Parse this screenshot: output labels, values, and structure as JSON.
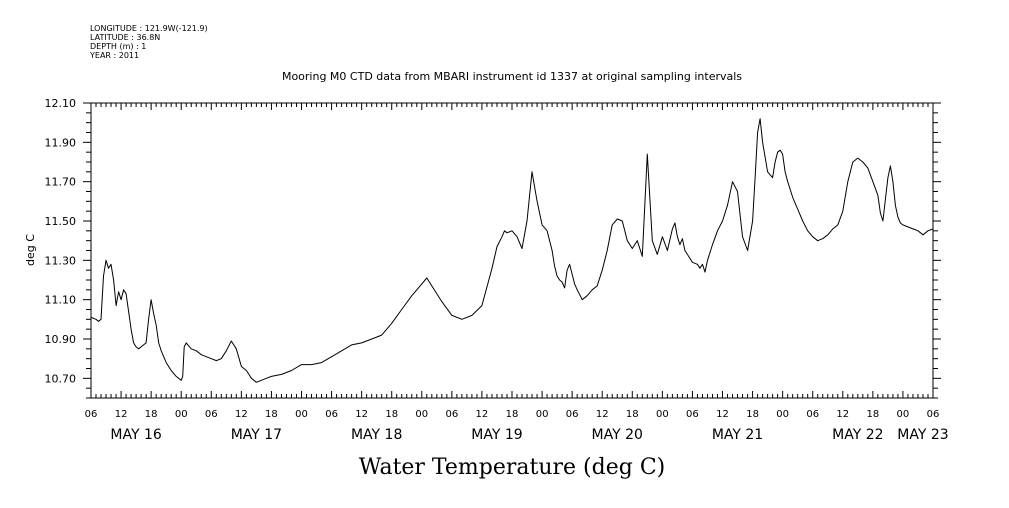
{
  "meta": {
    "longitude": "LONGITUDE : 121.9W(-121.9)",
    "latitude": "LATITUDE : 36.8N",
    "depth": "DEPTH (m) : 1",
    "year": "YEAR : 2011"
  },
  "title": "Mooring M0 CTD data from MBARI instrument id 1337 at original sampling intervals",
  "bottom_title": "Water Temperature (deg C)",
  "chart_data": {
    "type": "line",
    "title": "Mooring M0 CTD data from MBARI instrument id 1337 at original sampling intervals",
    "xlabel": "Water Temperature (deg C)",
    "ylabel": "deg C",
    "ylim": [
      10.6,
      12.1
    ],
    "xlim": [
      6,
      174
    ],
    "y_ticks": [
      10.7,
      10.9,
      11.1,
      11.3,
      11.5,
      11.7,
      11.9,
      12.1
    ],
    "y_tick_labels": [
      "10.70",
      "10.90",
      "11.10",
      "11.30",
      "11.50",
      "11.70",
      "11.90",
      "12.10"
    ],
    "x_hour_labels": [
      "06",
      "12",
      "18",
      "00",
      "06",
      "12",
      "18",
      "00",
      "06",
      "12",
      "18",
      "00",
      "06",
      "12",
      "18",
      "00",
      "06",
      "12",
      "18",
      "00",
      "06",
      "12",
      "18",
      "00",
      "06",
      "12",
      "18",
      "00",
      "06"
    ],
    "x_day_labels": [
      {
        "label": "MAY 16",
        "hour": 15
      },
      {
        "label": "MAY 17",
        "hour": 39
      },
      {
        "label": "MAY 18",
        "hour": 63
      },
      {
        "label": "MAY 19",
        "hour": 87
      },
      {
        "label": "MAY 20",
        "hour": 111
      },
      {
        "label": "MAY 21",
        "hour": 135
      },
      {
        "label": "MAY 22",
        "hour": 159
      },
      {
        "label": "MAY 23",
        "hour": 172
      }
    ],
    "grid": false,
    "series": [
      {
        "x": [
          6.0,
          7.0,
          7.5,
          8.0,
          8.5,
          9.0,
          9.5,
          10.0,
          10.5,
          11.0,
          11.5,
          12.0,
          12.5,
          13.0,
          14.0,
          14.5,
          15.0,
          15.5,
          16.0,
          17.0,
          17.5,
          18.0,
          18.5,
          19.0,
          19.5,
          20.0,
          21.0,
          22.0,
          23.0,
          24.0,
          24.3,
          24.6,
          25.0,
          26.0,
          27.0,
          28.0,
          29.0,
          30.0,
          31.0,
          32.0,
          33.0,
          34.0,
          35.0,
          36.0,
          36.5,
          37.0,
          37.5,
          38.0,
          39.0,
          40.0,
          41.0,
          42.0,
          44.0,
          46.0,
          48.0,
          50.0,
          52.0,
          54.0,
          56.0,
          58.0,
          60.0,
          62.0,
          64.0,
          66.0,
          68.0,
          70.0,
          72.0,
          73.0,
          74.0,
          76.0,
          78.0,
          80.0,
          82.0,
          84.0,
          86.0,
          87.0,
          88.0,
          88.5,
          89.0,
          90.0,
          91.0,
          92.0,
          93.0,
          94.0,
          95.0,
          96.0,
          97.0,
          98.0,
          98.5,
          99.0,
          99.5,
          100.0,
          100.5,
          101.0,
          101.5,
          102.0,
          102.5,
          103.0,
          104.0,
          105.0,
          106.0,
          107.0,
          108.0,
          109.0,
          110.0,
          111.0,
          112.0,
          113.0,
          114.0,
          115.0,
          116.0,
          117.0,
          118.0,
          119.0,
          120.0,
          121.0,
          122.0,
          122.5,
          123.0,
          123.5,
          124.0,
          124.5,
          125.0,
          126.0,
          127.0,
          127.5,
          128.0,
          128.5,
          129.0,
          130.0,
          131.0,
          132.0,
          133.0,
          134.0,
          135.0,
          136.0,
          137.0,
          138.0,
          138.5,
          139.0,
          139.5,
          140.0,
          141.0,
          142.0,
          142.5,
          143.0,
          143.5,
          144.0,
          144.5,
          145.0,
          146.0,
          147.0,
          148.0,
          149.0,
          150.0,
          151.0,
          152.0,
          153.0,
          154.0,
          155.0,
          156.0,
          157.0,
          158.0,
          159.0,
          160.0,
          161.0,
          162.0,
          163.0,
          163.5,
          164.0,
          165.0,
          165.5,
          166.0,
          166.5,
          167.0,
          167.5,
          168.0,
          169.0,
          170.0,
          171.0,
          172.0,
          173.0,
          174.0
        ],
        "y": [
          11.01,
          11.0,
          10.99,
          11.0,
          11.22,
          11.3,
          11.26,
          11.28,
          11.2,
          11.07,
          11.14,
          11.1,
          11.15,
          11.13,
          10.95,
          10.88,
          10.86,
          10.85,
          10.86,
          10.88,
          11.0,
          11.1,
          11.03,
          10.97,
          10.88,
          10.84,
          10.78,
          10.74,
          10.71,
          10.69,
          10.71,
          10.86,
          10.88,
          10.85,
          10.84,
          10.82,
          10.81,
          10.8,
          10.79,
          10.8,
          10.84,
          10.89,
          10.85,
          10.76,
          10.75,
          10.74,
          10.72,
          10.7,
          10.68,
          10.69,
          10.7,
          10.71,
          10.72,
          10.74,
          10.77,
          10.77,
          10.78,
          10.81,
          10.84,
          10.87,
          10.88,
          10.9,
          10.92,
          10.98,
          11.05,
          11.12,
          11.18,
          11.21,
          11.17,
          11.09,
          11.02,
          11.0,
          11.02,
          11.07,
          11.26,
          11.37,
          11.42,
          11.45,
          11.44,
          11.45,
          11.42,
          11.36,
          11.5,
          11.75,
          11.6,
          11.48,
          11.45,
          11.35,
          11.27,
          11.22,
          11.2,
          11.19,
          11.16,
          11.25,
          11.28,
          11.23,
          11.18,
          11.15,
          11.1,
          11.12,
          11.15,
          11.17,
          11.25,
          11.35,
          11.48,
          11.51,
          11.5,
          11.4,
          11.36,
          11.4,
          11.32,
          11.84,
          11.4,
          11.33,
          11.42,
          11.35,
          11.46,
          11.49,
          11.42,
          11.38,
          11.41,
          11.35,
          11.33,
          11.29,
          11.28,
          11.26,
          11.28,
          11.24,
          11.3,
          11.38,
          11.45,
          11.5,
          11.58,
          11.7,
          11.65,
          11.42,
          11.35,
          11.5,
          11.72,
          11.95,
          12.02,
          11.9,
          11.75,
          11.72,
          11.8,
          11.85,
          11.86,
          11.84,
          11.75,
          11.7,
          11.62,
          11.56,
          11.5,
          11.45,
          11.42,
          11.4,
          11.41,
          11.43,
          11.46,
          11.48,
          11.55,
          11.7,
          11.8,
          11.82,
          11.8,
          11.77,
          11.7,
          11.63,
          11.54,
          11.5,
          11.72,
          11.78,
          11.7,
          11.58,
          11.52,
          11.49,
          11.48,
          11.47,
          11.46,
          11.45,
          11.43,
          11.45,
          11.46
        ]
      }
    ]
  }
}
